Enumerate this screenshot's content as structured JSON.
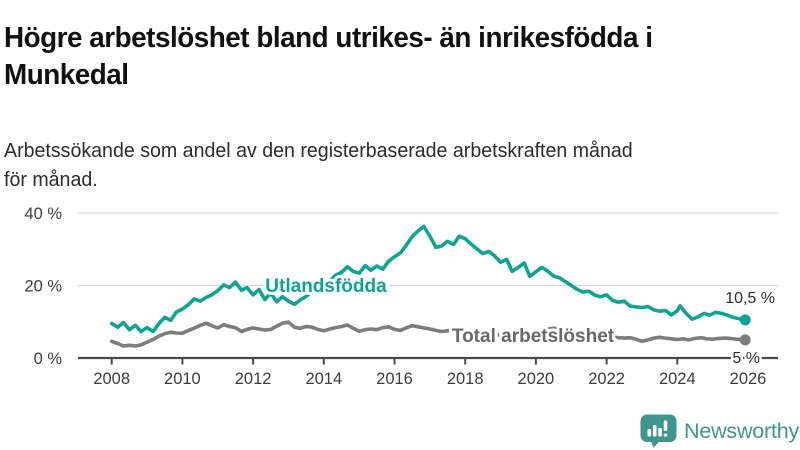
{
  "header": {
    "title": "Högre arbetslöshet bland utrikes- än inrikesfödda i\nMunkedal",
    "subtitle": "Arbetssökande som andel av den registerbaserade arbetskraften månad\nför månad."
  },
  "colors": {
    "accent_teal": "#0fa396",
    "series_gray": "#7d7d7d",
    "gray_label": "#686868",
    "axis": "#4a4a4a",
    "gridline": "#d9d9d9",
    "title_text": "#111111",
    "axis_text": "#3c3c3c",
    "brand_teal": "#3f968e"
  },
  "chart_data": {
    "type": "line",
    "title": "Högre arbetslöshet bland utrikes- än inrikesfödda i Munkedal",
    "subtitle": "Arbetssökande som andel av den registerbaserade arbetskraften månad för månad.",
    "grid": "horizontal-only",
    "legend": "inline-labels",
    "x_axis": {
      "ticks": [
        2008,
        2010,
        2012,
        2014,
        2016,
        2018,
        2020,
        2022,
        2024,
        2026
      ],
      "range": [
        2007.05,
        2026.85
      ]
    },
    "y_axis": {
      "labels": [
        "0 %",
        "20 %",
        "40 %"
      ],
      "tick_values": [
        0,
        20,
        40
      ],
      "range": [
        0,
        41
      ],
      "unit": "%"
    },
    "series": [
      {
        "name": "Utlandsfödda",
        "color": "#0fa396",
        "label_color": "#0fa396",
        "end_label": "10,5 %",
        "end_value": 10.5,
        "points": [
          [
            2008.0,
            9.5
          ],
          [
            2008.17,
            8.5
          ],
          [
            2008.33,
            9.8
          ],
          [
            2008.5,
            7.8
          ],
          [
            2008.67,
            9.0
          ],
          [
            2008.83,
            7.3
          ],
          [
            2009.0,
            8.4
          ],
          [
            2009.17,
            7.3
          ],
          [
            2009.33,
            9.4
          ],
          [
            2009.5,
            11.2
          ],
          [
            2009.67,
            10.4
          ],
          [
            2009.83,
            12.7
          ],
          [
            2010.0,
            13.5
          ],
          [
            2010.17,
            14.7
          ],
          [
            2010.33,
            16.3
          ],
          [
            2010.5,
            15.7
          ],
          [
            2010.67,
            16.7
          ],
          [
            2010.83,
            17.4
          ],
          [
            2011.0,
            18.6
          ],
          [
            2011.17,
            20.2
          ],
          [
            2011.33,
            19.4
          ],
          [
            2011.5,
            20.9
          ],
          [
            2011.67,
            18.7
          ],
          [
            2011.83,
            19.4
          ],
          [
            2012.0,
            17.4
          ],
          [
            2012.17,
            18.9
          ],
          [
            2012.33,
            16.1
          ],
          [
            2012.5,
            17.9
          ],
          [
            2012.67,
            15.5
          ],
          [
            2012.83,
            16.9
          ],
          [
            2013.0,
            15.7
          ],
          [
            2013.17,
            14.8
          ],
          [
            2013.33,
            16.0
          ],
          [
            2013.5,
            17.0
          ],
          [
            2013.67,
            18.3
          ],
          [
            2013.83,
            19.4
          ],
          [
            2014.0,
            20.3
          ],
          [
            2014.17,
            21.3
          ],
          [
            2014.33,
            22.8
          ],
          [
            2014.5,
            23.6
          ],
          [
            2014.67,
            25.2
          ],
          [
            2014.83,
            23.9
          ],
          [
            2015.0,
            23.4
          ],
          [
            2015.17,
            25.5
          ],
          [
            2015.33,
            24.2
          ],
          [
            2015.5,
            25.4
          ],
          [
            2015.67,
            24.5
          ],
          [
            2015.83,
            26.7
          ],
          [
            2016.0,
            27.9
          ],
          [
            2016.17,
            29.0
          ],
          [
            2016.33,
            31.1
          ],
          [
            2016.5,
            33.5
          ],
          [
            2016.67,
            35.1
          ],
          [
            2016.83,
            36.3
          ],
          [
            2017.0,
            33.6
          ],
          [
            2017.17,
            30.5
          ],
          [
            2017.33,
            30.9
          ],
          [
            2017.5,
            32.2
          ],
          [
            2017.67,
            31.3
          ],
          [
            2017.83,
            33.6
          ],
          [
            2018.0,
            32.9
          ],
          [
            2018.17,
            31.4
          ],
          [
            2018.33,
            30.1
          ],
          [
            2018.5,
            28.8
          ],
          [
            2018.67,
            29.4
          ],
          [
            2018.83,
            28.2
          ],
          [
            2019.0,
            26.4
          ],
          [
            2019.17,
            27.2
          ],
          [
            2019.33,
            23.9
          ],
          [
            2019.5,
            25.0
          ],
          [
            2019.67,
            26.2
          ],
          [
            2019.83,
            22.5
          ],
          [
            2020.0,
            23.8
          ],
          [
            2020.17,
            25.0
          ],
          [
            2020.33,
            24.0
          ],
          [
            2020.5,
            22.6
          ],
          [
            2020.67,
            22.1
          ],
          [
            2020.83,
            21.1
          ],
          [
            2021.0,
            20.0
          ],
          [
            2021.17,
            18.9
          ],
          [
            2021.33,
            18.2
          ],
          [
            2021.5,
            18.4
          ],
          [
            2021.67,
            17.3
          ],
          [
            2021.83,
            16.9
          ],
          [
            2022.0,
            17.4
          ],
          [
            2022.17,
            15.9
          ],
          [
            2022.33,
            15.4
          ],
          [
            2022.5,
            15.7
          ],
          [
            2022.67,
            14.3
          ],
          [
            2022.83,
            14.1
          ],
          [
            2023.0,
            13.9
          ],
          [
            2023.17,
            14.2
          ],
          [
            2023.33,
            13.3
          ],
          [
            2023.5,
            12.9
          ],
          [
            2023.67,
            13.1
          ],
          [
            2023.83,
            11.9
          ],
          [
            2024.0,
            13.0
          ],
          [
            2024.08,
            14.4
          ],
          [
            2024.25,
            12.3
          ],
          [
            2024.42,
            10.7
          ],
          [
            2024.58,
            11.3
          ],
          [
            2024.75,
            12.3
          ],
          [
            2024.92,
            11.8
          ],
          [
            2025.08,
            12.6
          ],
          [
            2025.25,
            12.3
          ],
          [
            2025.42,
            11.8
          ],
          [
            2025.58,
            11.2
          ],
          [
            2025.75,
            10.8
          ],
          [
            2025.92,
            10.5
          ]
        ]
      },
      {
        "name": "Total arbetslöshet",
        "color": "#7d7d7d",
        "label_color": "#686868",
        "end_label": "5 %",
        "end_value": 5,
        "points": [
          [
            2008.0,
            4.6
          ],
          [
            2008.17,
            4.0
          ],
          [
            2008.33,
            3.3
          ],
          [
            2008.5,
            3.5
          ],
          [
            2008.67,
            3.3
          ],
          [
            2008.83,
            3.6
          ],
          [
            2009.0,
            4.4
          ],
          [
            2009.17,
            5.1
          ],
          [
            2009.33,
            6.0
          ],
          [
            2009.5,
            6.7
          ],
          [
            2009.67,
            7.1
          ],
          [
            2009.83,
            6.9
          ],
          [
            2010.0,
            6.8
          ],
          [
            2010.17,
            7.6
          ],
          [
            2010.33,
            8.2
          ],
          [
            2010.5,
            9.0
          ],
          [
            2010.67,
            9.6
          ],
          [
            2010.83,
            8.9
          ],
          [
            2011.0,
            8.3
          ],
          [
            2011.17,
            9.2
          ],
          [
            2011.33,
            8.7
          ],
          [
            2011.5,
            8.4
          ],
          [
            2011.67,
            7.3
          ],
          [
            2011.83,
            7.9
          ],
          [
            2012.0,
            8.3
          ],
          [
            2012.17,
            8.0
          ],
          [
            2012.33,
            7.7
          ],
          [
            2012.5,
            7.9
          ],
          [
            2012.67,
            8.8
          ],
          [
            2012.83,
            9.6
          ],
          [
            2013.0,
            9.9
          ],
          [
            2013.17,
            8.5
          ],
          [
            2013.33,
            8.2
          ],
          [
            2013.5,
            8.7
          ],
          [
            2013.67,
            8.5
          ],
          [
            2013.83,
            7.9
          ],
          [
            2014.0,
            7.5
          ],
          [
            2014.17,
            8.0
          ],
          [
            2014.33,
            8.4
          ],
          [
            2014.5,
            8.7
          ],
          [
            2014.67,
            9.1
          ],
          [
            2014.83,
            8.2
          ],
          [
            2015.0,
            7.4
          ],
          [
            2015.17,
            7.8
          ],
          [
            2015.33,
            8.0
          ],
          [
            2015.5,
            7.8
          ],
          [
            2015.67,
            8.4
          ],
          [
            2015.83,
            8.6
          ],
          [
            2016.0,
            7.9
          ],
          [
            2016.17,
            7.6
          ],
          [
            2016.33,
            8.3
          ],
          [
            2016.5,
            8.9
          ],
          [
            2016.67,
            8.6
          ],
          [
            2016.83,
            8.3
          ],
          [
            2017.0,
            8.0
          ],
          [
            2017.17,
            7.6
          ],
          [
            2017.33,
            7.3
          ],
          [
            2017.5,
            7.5
          ],
          [
            2017.67,
            7.8
          ],
          [
            2017.83,
            7.4
          ],
          [
            2018.0,
            7.1
          ],
          [
            2018.17,
            6.8
          ],
          [
            2018.33,
            6.5
          ],
          [
            2018.5,
            6.7
          ],
          [
            2018.67,
            6.9
          ],
          [
            2018.83,
            6.6
          ],
          [
            2019.0,
            6.3
          ],
          [
            2019.17,
            6.5
          ],
          [
            2019.33,
            6.6
          ],
          [
            2019.5,
            6.8
          ],
          [
            2019.67,
            6.6
          ],
          [
            2019.83,
            6.4
          ],
          [
            2020.0,
            6.6
          ],
          [
            2020.17,
            7.4
          ],
          [
            2020.33,
            8.0
          ],
          [
            2020.5,
            8.2
          ],
          [
            2020.67,
            7.9
          ],
          [
            2020.83,
            7.6
          ],
          [
            2021.0,
            7.3
          ],
          [
            2021.17,
            7.0
          ],
          [
            2021.33,
            6.8
          ],
          [
            2021.5,
            6.6
          ],
          [
            2021.67,
            6.3
          ],
          [
            2021.83,
            6.1
          ],
          [
            2022.0,
            5.9
          ],
          [
            2022.17,
            5.8
          ],
          [
            2022.33,
            5.6
          ],
          [
            2022.5,
            5.5
          ],
          [
            2022.67,
            5.6
          ],
          [
            2022.83,
            5.2
          ],
          [
            2023.0,
            4.6
          ],
          [
            2023.17,
            5.0
          ],
          [
            2023.33,
            5.5
          ],
          [
            2023.5,
            5.7
          ],
          [
            2023.67,
            5.5
          ],
          [
            2023.83,
            5.3
          ],
          [
            2024.0,
            5.1
          ],
          [
            2024.17,
            5.3
          ],
          [
            2024.33,
            5.0
          ],
          [
            2024.5,
            5.4
          ],
          [
            2024.67,
            5.6
          ],
          [
            2024.83,
            5.3
          ],
          [
            2025.0,
            5.2
          ],
          [
            2025.17,
            5.4
          ],
          [
            2025.33,
            5.5
          ],
          [
            2025.5,
            5.4
          ],
          [
            2025.67,
            5.2
          ],
          [
            2025.92,
            5.0
          ]
        ]
      }
    ]
  },
  "footer": {
    "brand": "Newsworthy",
    "logo_icon": "bar-chart-speech-bubble-icon"
  }
}
